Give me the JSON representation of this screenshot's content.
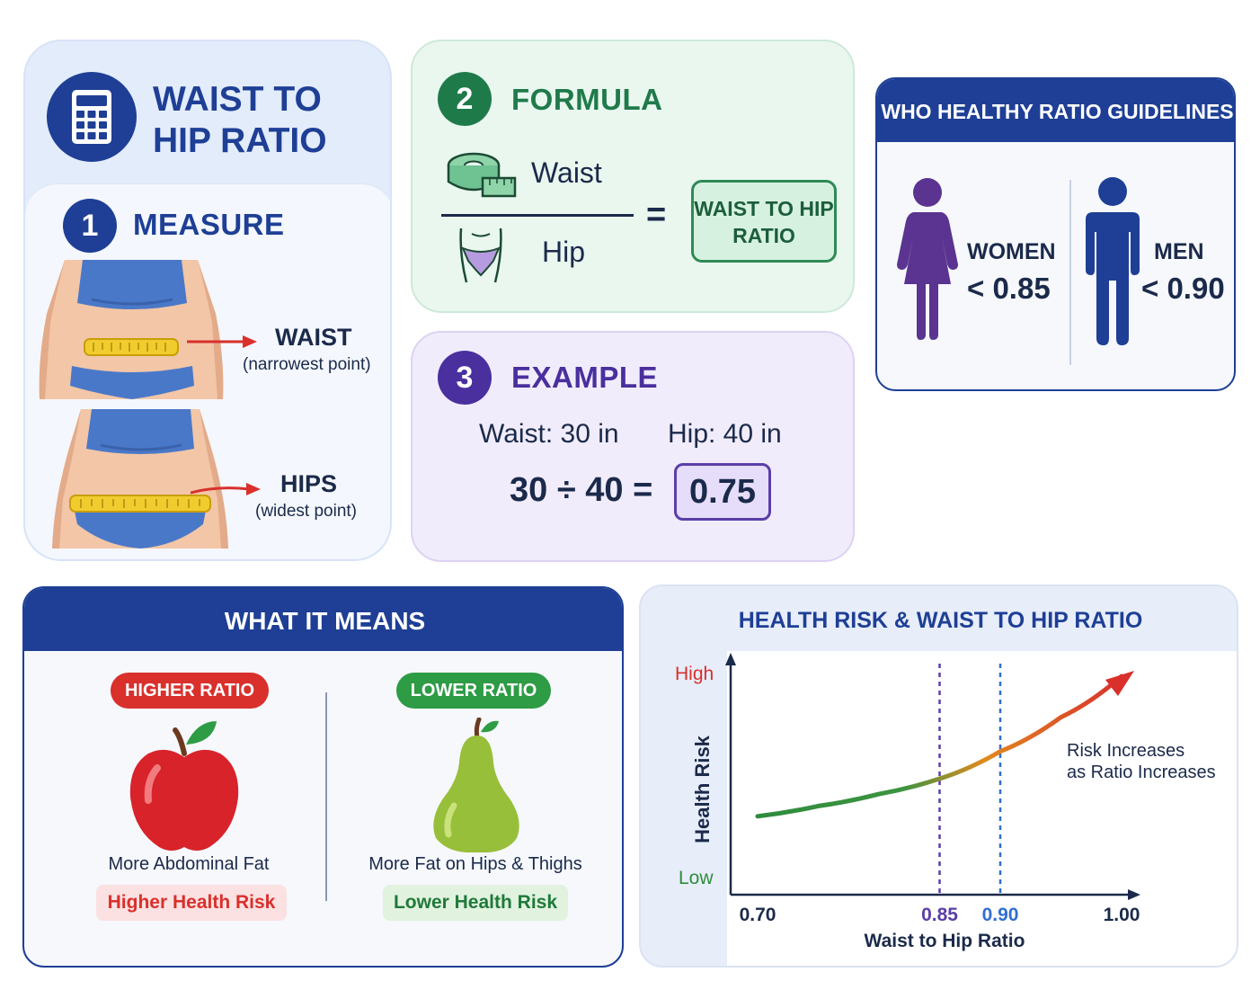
{
  "title": "WAIST TO HIP RATIO",
  "measure": {
    "step": "1",
    "heading": "MEASURE",
    "waist_label": "WAIST",
    "waist_note": "(narrowest point)",
    "hips_label": "HIPS",
    "hips_note": "(widest point)"
  },
  "formula": {
    "step": "2",
    "heading": "FORMULA",
    "numerator": "Waist",
    "denominator": "Hip",
    "equals": "=",
    "result_line1": "WAIST TO HIP",
    "result_line2": "RATIO"
  },
  "example": {
    "step": "3",
    "heading": "EXAMPLE",
    "waist": "Waist:  30 in",
    "hip": "Hip: 40 in",
    "calc": "30 ÷ 40 =",
    "result": "0.75"
  },
  "who": {
    "heading": "WHO HEALTHY RATIO GUIDELINES",
    "women_label": "WOMEN",
    "women_value": "< 0.85",
    "men_label": "MEN",
    "men_value": "< 0.90"
  },
  "means": {
    "heading": "WHAT IT MEANS",
    "higher_pill": "HIGHER RATIO",
    "higher_desc": "More Abdominal Fat",
    "higher_risk": "Higher Health Risk",
    "lower_pill": "LOWER RATIO",
    "lower_desc": "More Fat on Hips & Thighs",
    "lower_risk": "Lower Health Risk"
  },
  "chart_data": {
    "type": "line",
    "title": "HEALTH RISK & WAIST TO HIP RATIO",
    "xlabel": "Waist to Hip Ratio",
    "ylabel": "Health Risk",
    "y_high_label": "High",
    "y_low_label": "Low",
    "x_ticks": [
      "0.70",
      "0.85",
      "0.90",
      "1.00"
    ],
    "annotation_line1": "Risk Increases",
    "annotation_line2": "as Ratio Increases",
    "xlim": [
      0.7,
      1.0
    ],
    "thresholds": [
      0.85,
      0.9
    ],
    "x": [
      0.7,
      0.75,
      0.8,
      0.85,
      0.9,
      0.95,
      1.0
    ],
    "risk": [
      0.18,
      0.24,
      0.31,
      0.4,
      0.56,
      0.76,
      1.0
    ],
    "colors": {
      "low": "#2e8b3e",
      "mid": "#e08a1e",
      "high": "#d9302c",
      "threshold_women": "#5b3ea8",
      "threshold_men": "#2f6fd1"
    }
  }
}
